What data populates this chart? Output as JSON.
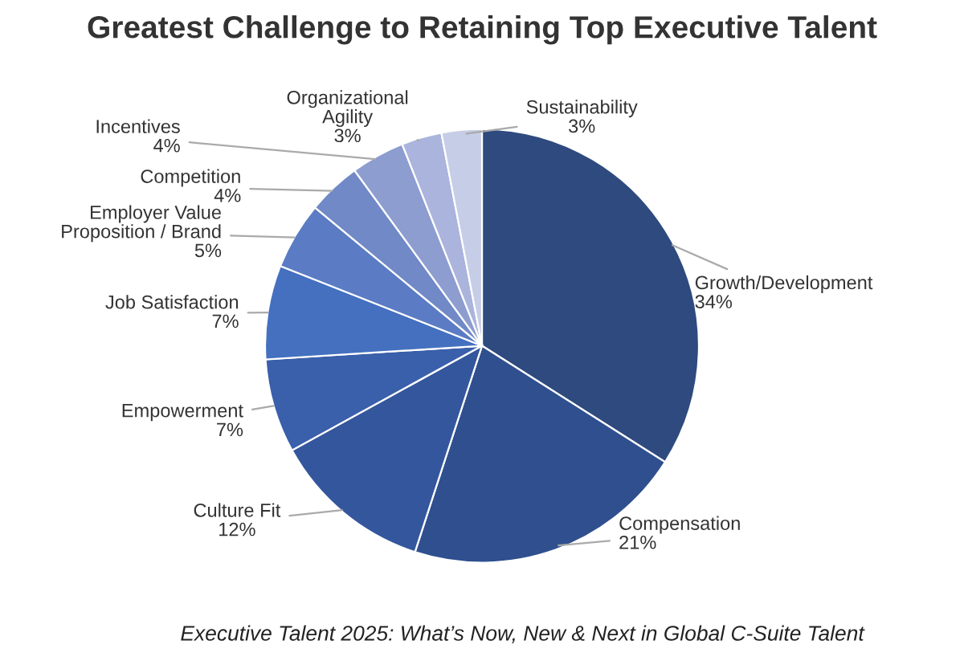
{
  "chart_data": {
    "type": "pie",
    "title": "Greatest Challenge to Retaining Top Executive Talent",
    "categories": [
      "Growth/Development",
      "Compensation",
      "Culture Fit",
      "Empowerment",
      "Job Satisfaction",
      "Employer Value\nProposition / Brand",
      "Competition",
      "Incentives",
      "Organizational\nAgility",
      "Sustainability"
    ],
    "values": [
      34,
      21,
      12,
      7,
      7,
      5,
      4,
      4,
      3,
      3
    ],
    "value_labels": [
      "34%",
      "21%",
      "12%",
      "7%",
      "7%",
      "5%",
      "4%",
      "4%",
      "3%",
      "3%"
    ],
    "colors": [
      "#2e4a7e",
      "#2f4f8f",
      "#34569d",
      "#3a5fab",
      "#4470bf",
      "#5b7cc4",
      "#7189c6",
      "#8d9dd0",
      "#aab4dc",
      "#c6cde6"
    ],
    "annotations": [
      "Executive Talent 2025: What’s Now, New & Next in Global C-Suite Talent"
    ],
    "legend": false
  }
}
